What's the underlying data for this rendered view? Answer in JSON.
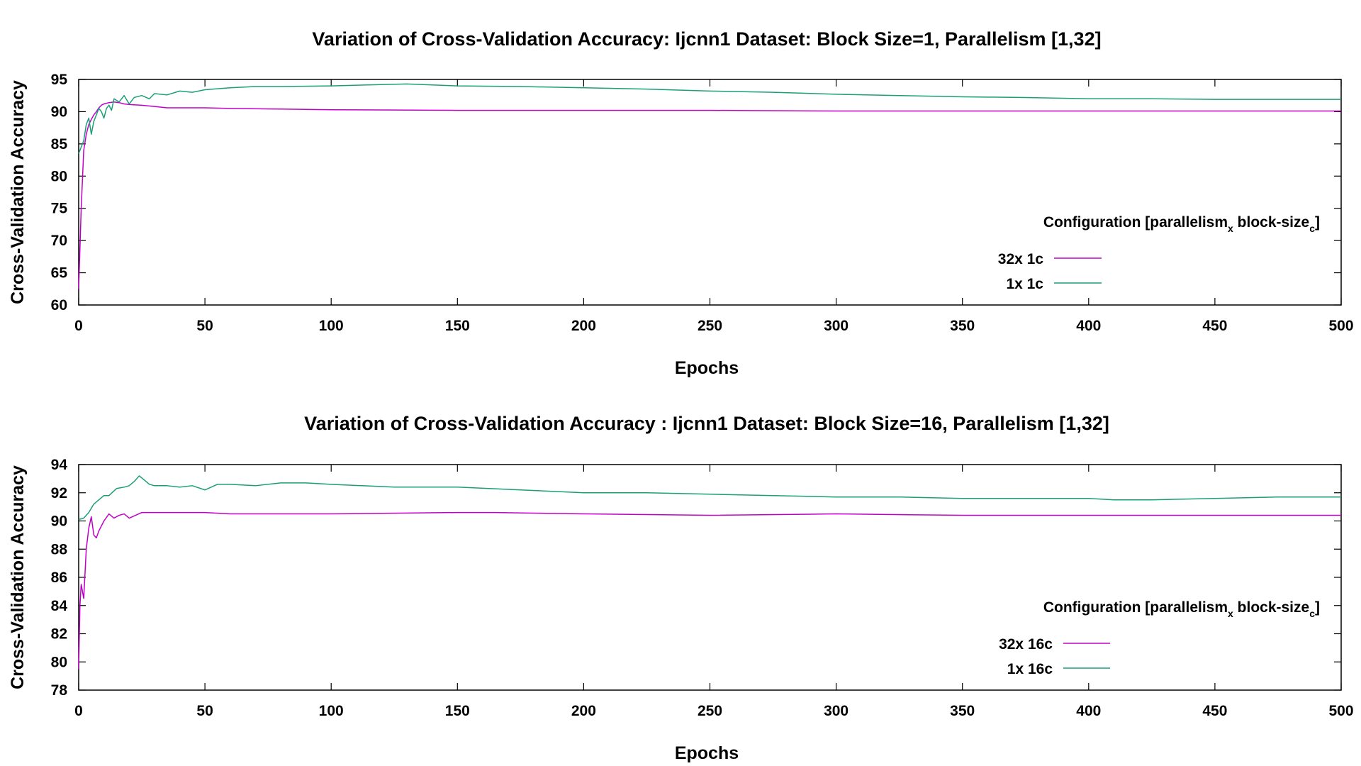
{
  "chart_data": [
    {
      "type": "line",
      "title": "Variation of Cross-Validation Accuracy: Ijcnn1 Dataset: Block Size=1, Parallelism [1,32]",
      "xlabel": "Epochs",
      "ylabel": "Cross-Validation Accuracy",
      "xlim": [
        0,
        500
      ],
      "ylim": [
        60,
        95
      ],
      "xticks": [
        0,
        50,
        100,
        150,
        200,
        250,
        300,
        350,
        400,
        450,
        500
      ],
      "yticks": [
        60,
        65,
        70,
        75,
        80,
        85,
        90,
        95
      ],
      "grid": false,
      "legend": {
        "title": "Configuration [parallelism",
        "title_sub_x": "x",
        "title_mid": " block-size",
        "title_sub_c": "c",
        "title_end": "]",
        "placement": "center-right"
      },
      "series": [
        {
          "name": "32x 1c",
          "color": "#c000c8",
          "points": [
            [
              0,
              62.5
            ],
            [
              1,
              75
            ],
            [
              2,
              84
            ],
            [
              3,
              86.5
            ],
            [
              4,
              88
            ],
            [
              5,
              88.8
            ],
            [
              6,
              89.5
            ],
            [
              7,
              90
            ],
            [
              8,
              90.6
            ],
            [
              9,
              91
            ],
            [
              10,
              91.2
            ],
            [
              12,
              91.4
            ],
            [
              14,
              91.5
            ],
            [
              16,
              91.4
            ],
            [
              18,
              91.2
            ],
            [
              20,
              91.1
            ],
            [
              25,
              91.0
            ],
            [
              30,
              90.8
            ],
            [
              35,
              90.6
            ],
            [
              40,
              90.6
            ],
            [
              50,
              90.6
            ],
            [
              60,
              90.5
            ],
            [
              80,
              90.4
            ],
            [
              100,
              90.3
            ],
            [
              150,
              90.2
            ],
            [
              200,
              90.2
            ],
            [
              250,
              90.2
            ],
            [
              300,
              90.1
            ],
            [
              350,
              90.1
            ],
            [
              400,
              90.1
            ],
            [
              450,
              90.1
            ],
            [
              500,
              90.1
            ]
          ]
        },
        {
          "name": "1x 1c",
          "color": "#1a9e78",
          "points": [
            [
              0,
              83.5
            ],
            [
              1,
              84.5
            ],
            [
              2,
              85.5
            ],
            [
              3,
              88
            ],
            [
              4,
              89
            ],
            [
              5,
              86.5
            ],
            [
              6,
              88.5
            ],
            [
              7,
              89.5
            ],
            [
              8,
              90.5
            ],
            [
              9,
              90
            ],
            [
              10,
              89
            ],
            [
              11,
              90.5
            ],
            [
              12,
              91
            ],
            [
              13,
              90.2
            ],
            [
              14,
              92
            ],
            [
              16,
              91.5
            ],
            [
              18,
              92.5
            ],
            [
              20,
              91.2
            ],
            [
              22,
              92.2
            ],
            [
              25,
              92.5
            ],
            [
              28,
              92
            ],
            [
              30,
              92.8
            ],
            [
              35,
              92.6
            ],
            [
              40,
              93.2
            ],
            [
              45,
              93
            ],
            [
              50,
              93.4
            ],
            [
              60,
              93.7
            ],
            [
              70,
              93.9
            ],
            [
              80,
              93.9
            ],
            [
              100,
              94.0
            ],
            [
              120,
              94.2
            ],
            [
              130,
              94.3
            ],
            [
              150,
              94.0
            ],
            [
              175,
              93.9
            ],
            [
              200,
              93.7
            ],
            [
              225,
              93.5
            ],
            [
              250,
              93.2
            ],
            [
              275,
              93.0
            ],
            [
              300,
              92.7
            ],
            [
              325,
              92.5
            ],
            [
              350,
              92.3
            ],
            [
              375,
              92.2
            ],
            [
              400,
              92.0
            ],
            [
              425,
              92.0
            ],
            [
              450,
              91.9
            ],
            [
              475,
              91.9
            ],
            [
              500,
              91.9
            ]
          ]
        }
      ]
    },
    {
      "type": "line",
      "title": "Variation of Cross-Validation Accuracy : Ijcnn1 Dataset: Block Size=16, Parallelism [1,32]",
      "xlabel": "Epochs",
      "ylabel": "Cross-Validation Accuracy",
      "xlim": [
        0,
        500
      ],
      "ylim": [
        78,
        94
      ],
      "xticks": [
        0,
        50,
        100,
        150,
        200,
        250,
        300,
        350,
        400,
        450,
        500
      ],
      "yticks": [
        78,
        80,
        82,
        84,
        86,
        88,
        90,
        92,
        94
      ],
      "grid": false,
      "legend": {
        "title": "Configuration [parallelism",
        "title_sub_x": "x",
        "title_mid": " block-size",
        "title_sub_c": "c",
        "title_end": "]",
        "placement": "center-right"
      },
      "series": [
        {
          "name": "32x 16c",
          "color": "#c000c8",
          "points": [
            [
              0,
              79.5
            ],
            [
              0.5,
              84
            ],
            [
              1,
              85.5
            ],
            [
              1.5,
              85
            ],
            [
              2,
              84.5
            ],
            [
              3,
              88
            ],
            [
              4,
              89.5
            ],
            [
              5,
              90.3
            ],
            [
              6,
              89
            ],
            [
              7,
              88.8
            ],
            [
              8,
              89.3
            ],
            [
              10,
              90
            ],
            [
              12,
              90.5
            ],
            [
              14,
              90.2
            ],
            [
              16,
              90.4
            ],
            [
              18,
              90.5
            ],
            [
              20,
              90.2
            ],
            [
              25,
              90.6
            ],
            [
              30,
              90.6
            ],
            [
              40,
              90.6
            ],
            [
              50,
              90.6
            ],
            [
              60,
              90.5
            ],
            [
              80,
              90.5
            ],
            [
              100,
              90.5
            ],
            [
              150,
              90.6
            ],
            [
              165,
              90.6
            ],
            [
              200,
              90.5
            ],
            [
              250,
              90.4
            ],
            [
              300,
              90.5
            ],
            [
              350,
              90.4
            ],
            [
              400,
              90.4
            ],
            [
              450,
              90.4
            ],
            [
              500,
              90.4
            ]
          ]
        },
        {
          "name": "1x 16c",
          "color": "#1a9e78",
          "points": [
            [
              0,
              90.1
            ],
            [
              2,
              90.2
            ],
            [
              4,
              90.6
            ],
            [
              6,
              91.2
            ],
            [
              8,
              91.5
            ],
            [
              10,
              91.8
            ],
            [
              12,
              91.8
            ],
            [
              15,
              92.3
            ],
            [
              18,
              92.4
            ],
            [
              20,
              92.5
            ],
            [
              22,
              92.8
            ],
            [
              24,
              93.2
            ],
            [
              26,
              92.9
            ],
            [
              28,
              92.6
            ],
            [
              30,
              92.5
            ],
            [
              35,
              92.5
            ],
            [
              40,
              92.4
            ],
            [
              45,
              92.5
            ],
            [
              50,
              92.2
            ],
            [
              55,
              92.6
            ],
            [
              60,
              92.6
            ],
            [
              70,
              92.5
            ],
            [
              80,
              92.7
            ],
            [
              90,
              92.7
            ],
            [
              100,
              92.6
            ],
            [
              125,
              92.4
            ],
            [
              150,
              92.4
            ],
            [
              175,
              92.2
            ],
            [
              200,
              92.0
            ],
            [
              225,
              92.0
            ],
            [
              250,
              91.9
            ],
            [
              275,
              91.8
            ],
            [
              300,
              91.7
            ],
            [
              325,
              91.7
            ],
            [
              350,
              91.6
            ],
            [
              375,
              91.6
            ],
            [
              400,
              91.6
            ],
            [
              410,
              91.5
            ],
            [
              425,
              91.5
            ],
            [
              450,
              91.6
            ],
            [
              475,
              91.7
            ],
            [
              500,
              91.7
            ]
          ]
        }
      ]
    }
  ]
}
